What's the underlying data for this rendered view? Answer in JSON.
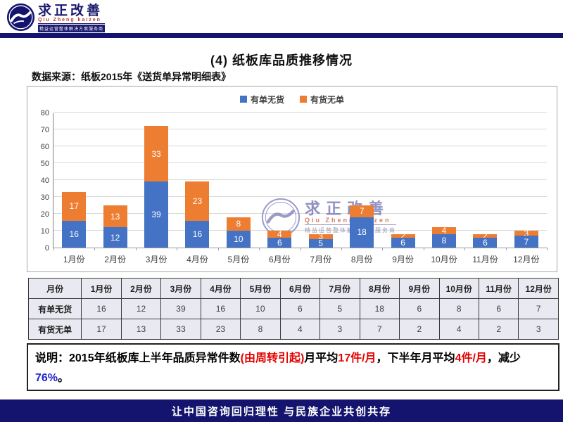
{
  "branding": {
    "name": "求正改善",
    "pinyin": "Qiu Zheng kaizen",
    "tagline": "精益运营整体解决方案服务商"
  },
  "page": {
    "title": "(4) 纸板库品质推移情况",
    "source": "数据来源：纸板2015年《送货单异常明细表》"
  },
  "colors": {
    "navy": "#14146e",
    "bar_blue": "#4472c4",
    "bar_orange": "#ed7d31",
    "table_bg": "#e9e9f1",
    "note_red": "#e60000",
    "note_blue": "#2222cc"
  },
  "chart_data": {
    "type": "bar",
    "stacked": true,
    "categories": [
      "1月份",
      "2月份",
      "3月份",
      "4月份",
      "5月份",
      "6月份",
      "7月份",
      "8月份",
      "9月份",
      "10月份",
      "11月份",
      "12月份"
    ],
    "series": [
      {
        "name": "有单无货",
        "color": "#4472c4",
        "values": [
          16,
          12,
          39,
          16,
          10,
          6,
          5,
          18,
          6,
          8,
          6,
          7
        ]
      },
      {
        "name": "有货无单",
        "color": "#ed7d31",
        "values": [
          17,
          13,
          33,
          23,
          8,
          4,
          3,
          7,
          2,
          4,
          2,
          3
        ]
      }
    ],
    "title": "",
    "xlabel": "",
    "ylabel": "",
    "ylim": [
      0,
      80
    ],
    "ytick_step": 10,
    "grid": true,
    "legend_position": "top",
    "data_labels": true
  },
  "watermark": {
    "name": "求正改善",
    "pinyin": "Qiu Zheng kaizen",
    "tagline": "精益运营整体解决方案服务商"
  },
  "table": {
    "corner": "月份",
    "columns": [
      "1月份",
      "2月份",
      "3月份",
      "4月份",
      "5月份",
      "6月份",
      "7月份",
      "8月份",
      "9月份",
      "10月份",
      "11月份",
      "12月份"
    ],
    "rows": [
      {
        "label": "有单无货",
        "values": [
          16,
          12,
          39,
          16,
          10,
          6,
          5,
          18,
          6,
          8,
          6,
          7
        ]
      },
      {
        "label": "有货无单",
        "values": [
          17,
          13,
          33,
          23,
          8,
          4,
          3,
          7,
          2,
          4,
          2,
          3
        ]
      }
    ]
  },
  "note": {
    "segments": [
      {
        "text": "说明：2015年纸板库上半年品质异常件数",
        "color": "#000000"
      },
      {
        "text": "(由周转引起)",
        "color": "#e60000"
      },
      {
        "text": "月平均",
        "color": "#000000"
      },
      {
        "text": "17件/月",
        "color": "#e60000"
      },
      {
        "text": "，下半年月平均",
        "color": "#000000"
      },
      {
        "text": "4件/月",
        "color": "#e60000"
      },
      {
        "text": "，减少",
        "color": "#000000"
      },
      {
        "text": "76%",
        "color": "#2222cc"
      },
      {
        "text": "。",
        "color": "#000000"
      }
    ]
  },
  "footer": {
    "text": "让中国咨询回归理性  与民族企业共创共存"
  }
}
